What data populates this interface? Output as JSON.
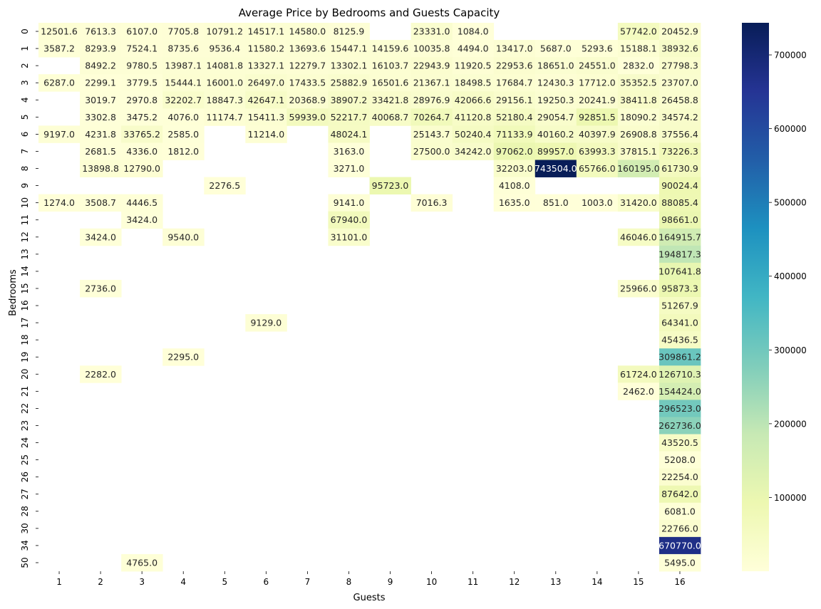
{
  "chart_data": {
    "type": "heatmap",
    "title": "Average Price by Bedrooms and Guests Capacity",
    "xlabel": "Guests",
    "ylabel": "Bedrooms",
    "colormap": "YlGnBu",
    "colormap_stops": [
      "#ffffd9",
      "#edf8b1",
      "#c7e9b4",
      "#7fcdbb",
      "#41b6c4",
      "#1d91c0",
      "#225ea8",
      "#253494",
      "#081d58"
    ],
    "value_range": [
      0,
      743504.0
    ],
    "colorbar_ticks": [
      100000,
      200000,
      300000,
      400000,
      500000,
      600000,
      700000
    ],
    "x_categories": [
      "1",
      "2",
      "3",
      "4",
      "5",
      "6",
      "7",
      "8",
      "9",
      "10",
      "11",
      "12",
      "13",
      "14",
      "15",
      "16"
    ],
    "y_categories": [
      "0",
      "1",
      "2",
      "3",
      "4",
      "5",
      "6",
      "7",
      "8",
      "9",
      "10",
      "11",
      "12",
      "13",
      "14",
      "15",
      "16",
      "17",
      "18",
      "19",
      "20",
      "21",
      "22",
      "23",
      "24",
      "25",
      "26",
      "27",
      "28",
      "30",
      "34",
      "50"
    ],
    "values": [
      [
        12501.6,
        7613.3,
        6107.0,
        7705.8,
        10791.2,
        14517.1,
        14580.0,
        8125.9,
        null,
        23331.0,
        1084.0,
        null,
        null,
        null,
        57742.0,
        20452.9
      ],
      [
        3587.2,
        8293.9,
        7524.1,
        8735.6,
        9536.4,
        11580.2,
        13693.6,
        15447.1,
        14159.6,
        10035.8,
        4494.0,
        13417.0,
        5687.0,
        5293.6,
        15188.1,
        38932.6
      ],
      [
        null,
        8492.2,
        9780.5,
        13987.1,
        14081.8,
        13327.1,
        12279.7,
        13302.1,
        16103.7,
        22943.9,
        11920.5,
        22953.6,
        18651.0,
        24551.0,
        2832.0,
        27798.3
      ],
      [
        6287.0,
        2299.1,
        3779.5,
        15444.1,
        16001.0,
        26497.0,
        17433.5,
        25882.9,
        16501.6,
        21367.1,
        18498.5,
        17684.7,
        12430.3,
        17712.0,
        35352.5,
        23707.0
      ],
      [
        null,
        3019.7,
        2970.8,
        32202.7,
        18847.3,
        42647.1,
        20368.9,
        38907.2,
        33421.8,
        28976.9,
        42066.6,
        29156.1,
        19250.3,
        20241.9,
        38411.8,
        26458.8
      ],
      [
        null,
        3302.8,
        3475.2,
        4076.0,
        11174.7,
        15411.3,
        59939.0,
        52217.7,
        40068.7,
        70264.7,
        41120.8,
        52180.4,
        29054.7,
        92851.5,
        18090.2,
        34574.2
      ],
      [
        9197.0,
        4231.8,
        33765.2,
        2585.0,
        null,
        11214.0,
        null,
        48024.1,
        null,
        25143.7,
        50240.4,
        71133.9,
        40160.2,
        40397.9,
        26908.8,
        37556.4
      ],
      [
        null,
        2681.5,
        4336.0,
        1812.0,
        null,
        null,
        null,
        3163.0,
        null,
        27500.0,
        34242.0,
        97062.0,
        89957.0,
        63993.3,
        37815.1,
        73226.3
      ],
      [
        null,
        13898.8,
        12790.0,
        null,
        null,
        null,
        null,
        3271.0,
        null,
        null,
        null,
        32203.0,
        743504.0,
        65766.0,
        160195.0,
        61730.9
      ],
      [
        null,
        null,
        null,
        null,
        2276.5,
        null,
        null,
        null,
        95723.0,
        null,
        null,
        4108.0,
        null,
        null,
        null,
        90024.4
      ],
      [
        1274.0,
        3508.7,
        4446.5,
        null,
        null,
        null,
        null,
        9141.0,
        null,
        7016.3,
        null,
        1635.0,
        851.0,
        1003.0,
        31420.0,
        88085.4
      ],
      [
        null,
        null,
        3424.0,
        null,
        null,
        null,
        null,
        67940.0,
        null,
        null,
        null,
        null,
        null,
        null,
        null,
        98661.0
      ],
      [
        null,
        3424.0,
        null,
        9540.0,
        null,
        null,
        null,
        31101.0,
        null,
        null,
        null,
        null,
        null,
        null,
        46046.0,
        164915.7
      ],
      [
        null,
        null,
        null,
        null,
        null,
        null,
        null,
        null,
        null,
        null,
        null,
        null,
        null,
        null,
        null,
        194817.3
      ],
      [
        null,
        null,
        null,
        null,
        null,
        null,
        null,
        null,
        null,
        null,
        null,
        null,
        null,
        null,
        null,
        107641.8
      ],
      [
        null,
        2736.0,
        null,
        null,
        null,
        null,
        null,
        null,
        null,
        null,
        null,
        null,
        null,
        null,
        25966.0,
        95873.3
      ],
      [
        null,
        null,
        null,
        null,
        null,
        null,
        null,
        null,
        null,
        null,
        null,
        null,
        null,
        null,
        null,
        51267.9
      ],
      [
        null,
        null,
        null,
        null,
        null,
        9129.0,
        null,
        null,
        null,
        null,
        null,
        null,
        null,
        null,
        null,
        64341.0
      ],
      [
        null,
        null,
        null,
        null,
        null,
        null,
        null,
        null,
        null,
        null,
        null,
        null,
        null,
        null,
        null,
        45436.5
      ],
      [
        null,
        null,
        null,
        2295.0,
        null,
        null,
        null,
        null,
        null,
        null,
        null,
        null,
        null,
        null,
        null,
        309861.2
      ],
      [
        null,
        2282.0,
        null,
        null,
        null,
        null,
        null,
        null,
        null,
        null,
        null,
        null,
        null,
        null,
        61724.0,
        126710.3
      ],
      [
        null,
        null,
        null,
        null,
        null,
        null,
        null,
        null,
        null,
        null,
        null,
        null,
        null,
        null,
        2462.0,
        154424.0
      ],
      [
        null,
        null,
        null,
        null,
        null,
        null,
        null,
        null,
        null,
        null,
        null,
        null,
        null,
        null,
        null,
        296523.0
      ],
      [
        null,
        null,
        null,
        null,
        null,
        null,
        null,
        null,
        null,
        null,
        null,
        null,
        null,
        null,
        null,
        262736.0
      ],
      [
        null,
        null,
        null,
        null,
        null,
        null,
        null,
        null,
        null,
        null,
        null,
        null,
        null,
        null,
        null,
        43520.5
      ],
      [
        null,
        null,
        null,
        null,
        null,
        null,
        null,
        null,
        null,
        null,
        null,
        null,
        null,
        null,
        null,
        5208.0
      ],
      [
        null,
        null,
        null,
        null,
        null,
        null,
        null,
        null,
        null,
        null,
        null,
        null,
        null,
        null,
        null,
        22254.0
      ],
      [
        null,
        null,
        null,
        null,
        null,
        null,
        null,
        null,
        null,
        null,
        null,
        null,
        null,
        null,
        null,
        87642.0
      ],
      [
        null,
        null,
        null,
        null,
        null,
        null,
        null,
        null,
        null,
        null,
        null,
        null,
        null,
        null,
        null,
        6081.0
      ],
      [
        null,
        null,
        null,
        null,
        null,
        null,
        null,
        null,
        null,
        null,
        null,
        null,
        null,
        null,
        null,
        22766.0
      ],
      [
        null,
        null,
        null,
        null,
        null,
        null,
        null,
        null,
        null,
        null,
        null,
        null,
        null,
        null,
        null,
        670770.0
      ],
      [
        null,
        null,
        4765.0,
        null,
        null,
        null,
        null,
        null,
        null,
        null,
        null,
        null,
        null,
        null,
        null,
        5495.0
      ]
    ]
  }
}
